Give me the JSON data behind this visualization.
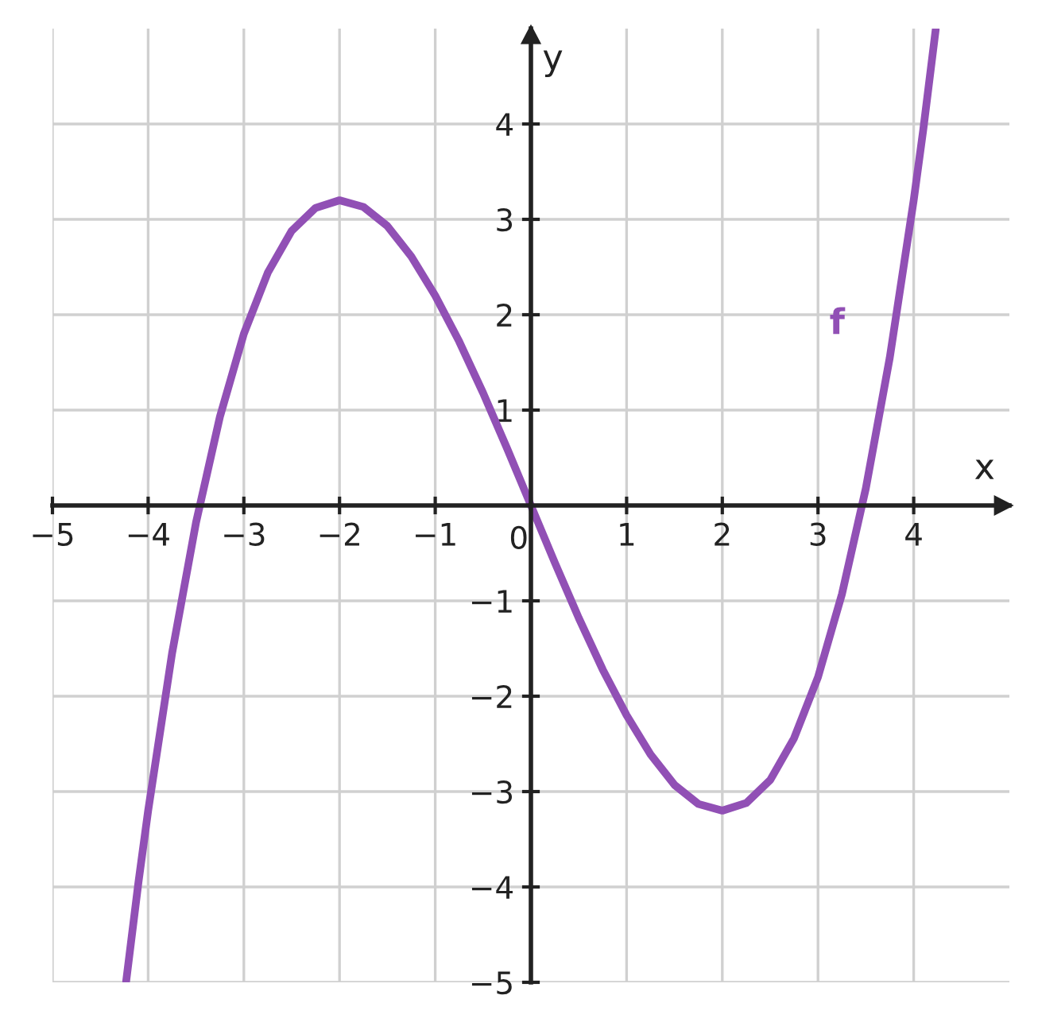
{
  "chart_data": {
    "type": "line",
    "xlabel": "x",
    "ylabel": "y",
    "series": [
      {
        "color": "#9150b5",
        "x": [
          -4.23,
          -4.1,
          -4,
          -3.75,
          -3.5,
          -3.25,
          -3,
          -2.75,
          -2.5,
          -2.25,
          -2,
          -1.75,
          -1.5,
          -1.25,
          -1,
          -0.75,
          -0.5,
          -0.25,
          0,
          0.25,
          0.5,
          0.75,
          1,
          1.25,
          1.5,
          1.75,
          2,
          2.25,
          2.5,
          2.75,
          3,
          3.25,
          3.5,
          3.75,
          4,
          4.1,
          4.23
        ],
        "values": [
          -4.99,
          -3.94,
          -3.2,
          -1.55,
          -0.18,
          0.93,
          1.8,
          2.44,
          2.88,
          3.12,
          3.2,
          3.13,
          2.93,
          2.61,
          2.2,
          1.72,
          1.18,
          0.6,
          0,
          -0.6,
          -1.18,
          -1.72,
          -2.2,
          -2.61,
          -2.93,
          -3.13,
          -3.2,
          -3.12,
          -2.88,
          -2.44,
          -1.8,
          -0.93,
          0.18,
          1.55,
          3.2,
          3.94,
          4.99
        ]
      }
    ],
    "annotations": [
      "f"
    ],
    "xlim": [
      -5,
      5
    ],
    "ylim": [
      -5,
      5
    ],
    "xticks": [
      -5,
      -4,
      -3,
      -2,
      -1,
      0,
      1,
      2,
      3,
      4
    ],
    "yticks": [
      -5,
      -4,
      -3,
      -2,
      -1,
      {
        "value": 0,
        "label": null
      },
      1,
      2,
      3,
      4
    ],
    "grid": true,
    "marker": "none",
    "line_style": "solid"
  }
}
